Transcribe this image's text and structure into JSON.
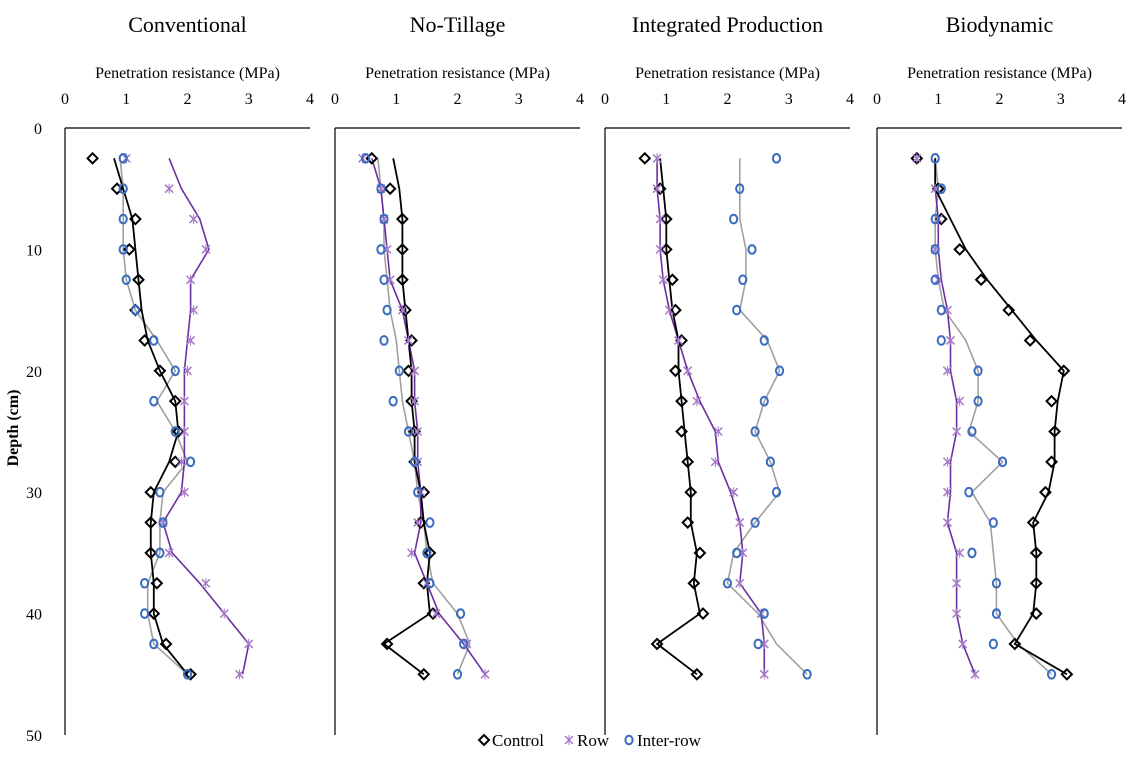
{
  "figure": {
    "y_axis_label": "Depth (cm)",
    "y_ticks": [
      0,
      10,
      20,
      30,
      40,
      50
    ],
    "x_ticks": [
      0,
      1,
      2,
      3,
      4
    ],
    "legend": [
      {
        "key": "control",
        "label": "Control"
      },
      {
        "key": "row",
        "label": "Row"
      },
      {
        "key": "interrow",
        "label": "Inter-row"
      }
    ],
    "colors": {
      "control": "#000000",
      "row_marker": "#a678c8",
      "row_line": "#6b2fa0",
      "interrow_marker": "#3a6cc0",
      "interrow_line": "#a0a0a0"
    }
  },
  "chart_data": [
    {
      "type": "scatter",
      "title": "Conventional",
      "xlabel": "Penetration resistance (MPa)",
      "ylabel": "Depth (cm)",
      "xlim": [
        0,
        4
      ],
      "ylim": [
        50,
        0
      ],
      "depths": [
        2.5,
        5,
        7.5,
        10,
        12.5,
        15,
        17.5,
        20,
        22.5,
        25,
        27.5,
        30,
        32.5,
        35,
        37.5,
        40,
        42.5,
        45
      ],
      "series": [
        {
          "name": "Control",
          "key": "control",
          "values": [
            0.45,
            0.85,
            1.15,
            1.05,
            1.2,
            1.15,
            1.3,
            1.55,
            1.8,
            1.85,
            1.8,
            1.4,
            1.4,
            1.4,
            1.5,
            1.45,
            1.65,
            2.05
          ]
        },
        {
          "name": "Row",
          "key": "row",
          "values": [
            1.0,
            1.7,
            2.1,
            2.3,
            2.05,
            2.1,
            2.05,
            2.0,
            1.95,
            1.95,
            1.9,
            1.95,
            1.6,
            1.7,
            2.3,
            2.6,
            3.0,
            2.85
          ]
        },
        {
          "name": "Inter-row",
          "key": "interrow",
          "values": [
            0.95,
            0.95,
            0.95,
            0.95,
            1.0,
            1.15,
            1.45,
            1.8,
            1.45,
            1.8,
            2.05,
            1.55,
            1.6,
            1.55,
            1.3,
            1.3,
            1.45,
            2.0
          ]
        }
      ],
      "trend_values": {
        "control": [
          0.8,
          0.95,
          1.1,
          1.15,
          1.2,
          1.25,
          1.35,
          1.55,
          1.8,
          1.85,
          1.7,
          1.45,
          1.4,
          1.4,
          1.45,
          1.45,
          1.6,
          2.0
        ],
        "row": [
          1.7,
          1.9,
          2.2,
          2.35,
          2.05,
          2.05,
          2.0,
          1.95,
          1.95,
          1.95,
          1.95,
          1.9,
          1.6,
          1.75,
          2.2,
          2.6,
          3.0,
          2.9
        ],
        "interrow": [
          0.9,
          0.95,
          0.95,
          0.95,
          1.0,
          1.15,
          1.5,
          1.8,
          1.5,
          1.8,
          2.0,
          1.6,
          1.55,
          1.55,
          1.35,
          1.35,
          1.45,
          2.0
        ]
      }
    },
    {
      "type": "scatter",
      "title": "No-Tillage",
      "xlabel": "Penetration resistance (MPa)",
      "ylabel": "Depth (cm)",
      "xlim": [
        0,
        4
      ],
      "ylim": [
        50,
        0
      ],
      "depths": [
        2.5,
        5,
        7.5,
        10,
        12.5,
        15,
        17.5,
        20,
        22.5,
        25,
        27.5,
        30,
        32.5,
        35,
        37.5,
        40,
        42.5,
        45
      ],
      "series": [
        {
          "name": "Control",
          "key": "control",
          "values": [
            0.6,
            0.9,
            1.1,
            1.1,
            1.1,
            1.15,
            1.25,
            1.2,
            1.25,
            1.3,
            1.3,
            1.45,
            1.4,
            1.55,
            1.45,
            1.6,
            0.85,
            1.45
          ]
        },
        {
          "name": "Row",
          "key": "row",
          "values": [
            0.45,
            0.75,
            0.8,
            0.85,
            0.9,
            1.1,
            1.2,
            1.3,
            1.3,
            1.35,
            1.35,
            1.4,
            1.35,
            1.25,
            1.5,
            1.65,
            2.15,
            2.45
          ]
        },
        {
          "name": "Inter-row",
          "key": "interrow",
          "values": [
            0.5,
            0.75,
            0.8,
            0.75,
            0.8,
            0.85,
            0.8,
            1.05,
            0.95,
            1.2,
            1.3,
            1.35,
            1.55,
            1.5,
            1.55,
            2.05,
            2.1,
            2.0
          ]
        }
      ],
      "trend_values": {
        "control": [
          0.95,
          1.05,
          1.1,
          1.1,
          1.1,
          1.15,
          1.2,
          1.25,
          1.25,
          1.3,
          1.3,
          1.4,
          1.45,
          1.55,
          1.5,
          1.55,
          0.8,
          1.45
        ],
        "row": [
          0.6,
          0.75,
          0.8,
          0.85,
          0.9,
          1.1,
          1.2,
          1.3,
          1.3,
          1.35,
          1.35,
          1.4,
          1.4,
          1.3,
          1.5,
          1.7,
          2.1,
          2.45
        ],
        "interrow": [
          0.7,
          0.75,
          0.8,
          0.8,
          0.85,
          0.9,
          1.0,
          1.05,
          1.1,
          1.2,
          1.3,
          1.35,
          1.45,
          1.5,
          1.6,
          2.0,
          2.2,
          2.0
        ]
      }
    },
    {
      "type": "scatter",
      "title": "Integrated Production",
      "xlabel": "Penetration resistance (MPa)",
      "ylabel": "Depth (cm)",
      "xlim": [
        0,
        4
      ],
      "ylim": [
        50,
        0
      ],
      "depths": [
        2.5,
        5,
        7.5,
        10,
        12.5,
        15,
        17.5,
        20,
        22.5,
        25,
        27.5,
        30,
        32.5,
        35,
        37.5,
        40,
        42.5,
        45
      ],
      "series": [
        {
          "name": "Control",
          "key": "control",
          "values": [
            0.65,
            0.9,
            1.0,
            1.0,
            1.1,
            1.15,
            1.25,
            1.15,
            1.25,
            1.25,
            1.35,
            1.4,
            1.35,
            1.55,
            1.45,
            1.6,
            0.85,
            1.5
          ]
        },
        {
          "name": "Row",
          "key": "row",
          "values": [
            0.85,
            0.85,
            0.9,
            0.9,
            0.95,
            1.05,
            1.2,
            1.35,
            1.5,
            1.85,
            1.8,
            2.1,
            2.2,
            2.25,
            2.2,
            2.55,
            2.6,
            2.6
          ]
        },
        {
          "name": "Inter-row",
          "key": "interrow",
          "values": [
            2.8,
            2.2,
            2.1,
            2.4,
            2.25,
            2.15,
            2.6,
            2.85,
            2.6,
            2.45,
            2.7,
            2.8,
            2.45,
            2.15,
            2.0,
            2.6,
            2.5,
            3.3
          ]
        }
      ],
      "trend_values": {
        "control": [
          0.9,
          0.95,
          1.0,
          1.0,
          1.05,
          1.1,
          1.2,
          1.2,
          1.25,
          1.3,
          1.35,
          1.4,
          1.4,
          1.5,
          1.45,
          1.55,
          0.85,
          1.5
        ],
        "row": [
          0.85,
          0.85,
          0.9,
          0.9,
          0.95,
          1.05,
          1.2,
          1.35,
          1.55,
          1.8,
          1.85,
          2.05,
          2.2,
          2.25,
          2.2,
          2.55,
          2.6,
          2.6
        ],
        "interrow": [
          2.2,
          2.2,
          2.2,
          2.3,
          2.3,
          2.2,
          2.65,
          2.85,
          2.6,
          2.45,
          2.7,
          2.85,
          2.45,
          2.1,
          2.0,
          2.5,
          2.8,
          3.3
        ]
      }
    },
    {
      "type": "scatter",
      "title": "Biodynamic",
      "xlabel": "Penetration resistance (MPa)",
      "ylabel": "Depth (cm)",
      "xlim": [
        0,
        4
      ],
      "ylim": [
        50,
        0
      ],
      "depths": [
        2.5,
        5,
        7.5,
        10,
        12.5,
        15,
        17.5,
        20,
        22.5,
        25,
        27.5,
        30,
        32.5,
        35,
        37.5,
        40,
        42.5,
        45
      ],
      "series": [
        {
          "name": "Control",
          "key": "control",
          "values": [
            0.65,
            1.0,
            1.05,
            1.35,
            1.7,
            2.15,
            2.5,
            3.05,
            2.85,
            2.9,
            2.85,
            2.75,
            2.55,
            2.6,
            2.6,
            2.6,
            2.25,
            3.1
          ]
        },
        {
          "name": "Row",
          "key": "row",
          "values": [
            0.65,
            0.95,
            1.0,
            0.95,
            1.0,
            1.15,
            1.2,
            1.15,
            1.35,
            1.3,
            1.15,
            1.15,
            1.15,
            1.35,
            1.3,
            1.3,
            1.4,
            1.6
          ]
        },
        {
          "name": "Inter-row",
          "key": "interrow",
          "values": [
            0.95,
            1.05,
            0.95,
            0.95,
            0.95,
            1.05,
            1.05,
            1.65,
            1.65,
            1.55,
            2.05,
            1.5,
            1.9,
            1.55,
            1.95,
            1.95,
            1.9,
            2.85
          ]
        }
      ],
      "trend_values": {
        "control": [
          0.95,
          0.95,
          1.2,
          1.45,
          1.8,
          2.2,
          2.6,
          3.05,
          2.95,
          2.9,
          2.9,
          2.8,
          2.55,
          2.6,
          2.6,
          2.55,
          2.25,
          3.1
        ],
        "row": [
          0.95,
          0.95,
          1.0,
          1.0,
          1.05,
          1.15,
          1.2,
          1.2,
          1.3,
          1.3,
          1.2,
          1.2,
          1.15,
          1.3,
          1.3,
          1.3,
          1.4,
          1.6
        ],
        "interrow": [
          0.95,
          1.0,
          0.95,
          0.95,
          1.0,
          1.1,
          1.45,
          1.65,
          1.65,
          1.5,
          2.05,
          1.55,
          1.85,
          1.9,
          1.95,
          1.95,
          2.3,
          2.85
        ]
      }
    }
  ]
}
